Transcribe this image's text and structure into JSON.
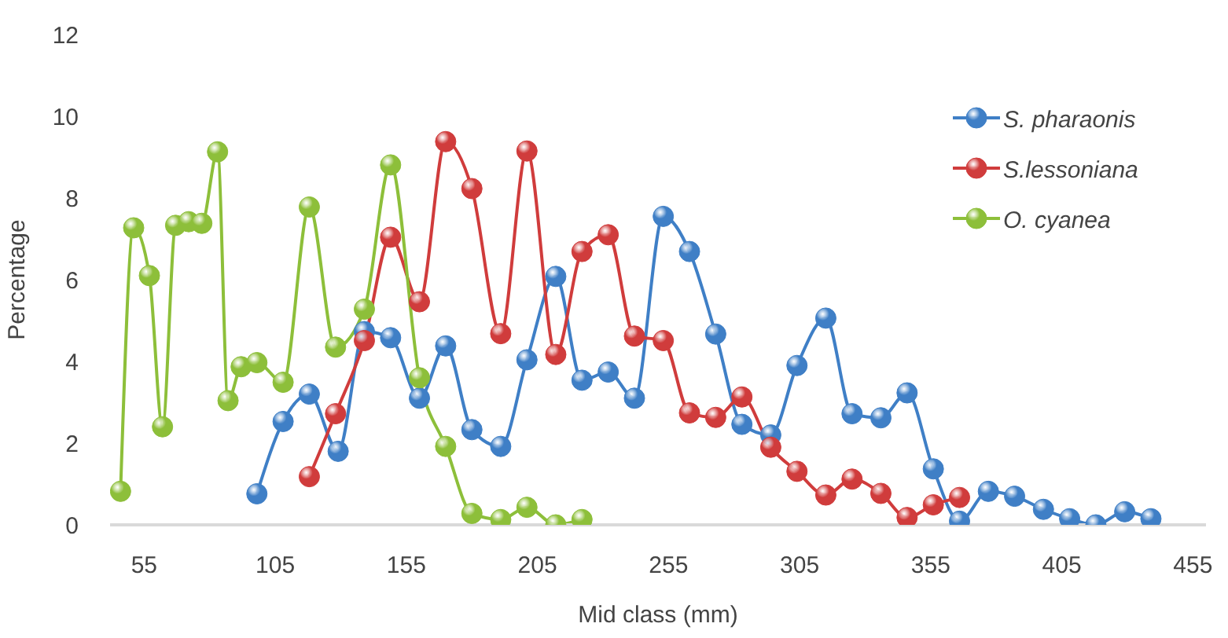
{
  "chart_data": {
    "type": "line",
    "xlabel": "Mid class (mm)",
    "ylabel": "Percentage",
    "xlim": [
      42,
      460
    ],
    "xticks": [
      55,
      105,
      155,
      205,
      255,
      305,
      355,
      405,
      455
    ],
    "ylim": [
      0,
      12
    ],
    "yticks": [
      0,
      2,
      4,
      6,
      8,
      10,
      12
    ],
    "grid": false,
    "legend": "top right",
    "marker": "circle",
    "line_style": "solid",
    "series": [
      {
        "name": "S. pharaonis",
        "color": "#3f7fc6",
        "x": [
          98,
          108,
          118,
          129,
          139,
          149,
          160,
          170,
          180,
          191,
          201,
          212,
          222,
          232,
          242,
          253,
          263,
          273,
          283,
          294,
          304,
          315,
          325,
          336,
          346,
          356,
          366,
          377,
          387,
          398,
          408,
          418,
          429,
          439
        ],
        "values": [
          0.76,
          2.53,
          3.2,
          1.8,
          4.73,
          4.58,
          3.1,
          4.38,
          2.33,
          1.92,
          4.04,
          6.08,
          3.54,
          3.74,
          3.1,
          7.55,
          6.69,
          4.67,
          2.46,
          2.2,
          3.9,
          5.06,
          2.72,
          2.62,
          3.23,
          1.37,
          0.09,
          0.82,
          0.7,
          0.38,
          0.15,
          0,
          0.32,
          0.15
        ]
      },
      {
        "name": "S.lessoniana",
        "color": "#d03c3c",
        "x": [
          118,
          128,
          139,
          149,
          160,
          170,
          180,
          191,
          201,
          212,
          222,
          232,
          242,
          253,
          263,
          273,
          283,
          294,
          304,
          315,
          325,
          336,
          346,
          356,
          366
        ],
        "values": [
          1.18,
          2.72,
          4.51,
          7.04,
          5.46,
          9.38,
          8.23,
          4.68,
          9.15,
          4.17,
          6.69,
          7.1,
          4.62,
          4.51,
          2.74,
          2.63,
          3.13,
          1.9,
          1.31,
          0.73,
          1.12,
          0.77,
          0.18,
          0.49,
          0.67
        ]
      },
      {
        "name": "O. cyanea",
        "color": "#8dbf3a",
        "x": [
          46,
          51,
          57,
          62,
          67,
          72,
          77,
          83,
          87,
          92,
          98,
          108,
          118,
          128,
          139,
          149,
          160,
          170,
          180,
          191,
          201,
          212,
          222
        ],
        "values": [
          0.82,
          7.27,
          6.1,
          2.4,
          7.33,
          7.42,
          7.38,
          9.13,
          3.04,
          3.87,
          3.97,
          3.49,
          7.78,
          4.35,
          5.28,
          8.81,
          3.6,
          1.92,
          0.28,
          0.13,
          0.43,
          0,
          0.13
        ]
      }
    ]
  }
}
